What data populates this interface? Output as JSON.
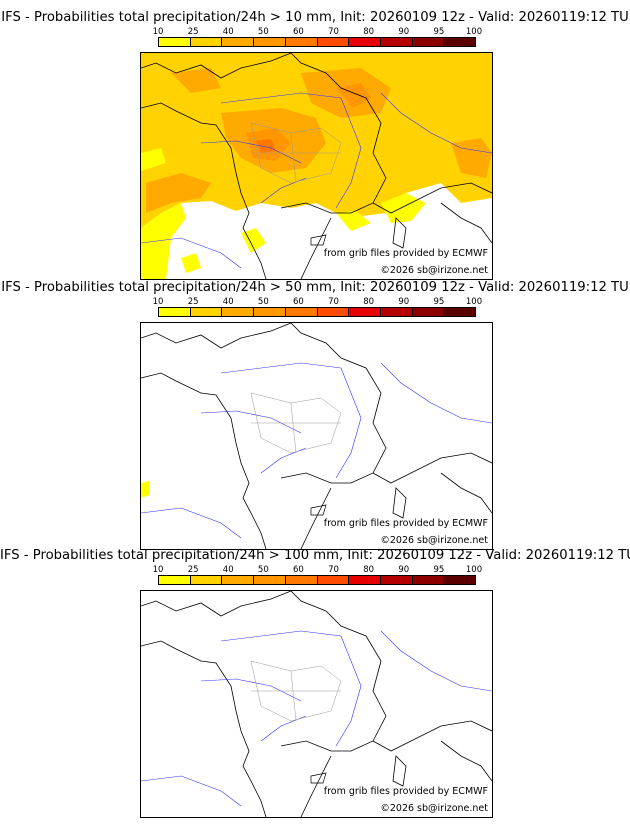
{
  "legend": {
    "ticks": [
      "10",
      "25",
      "40",
      "50",
      "60",
      "70",
      "80",
      "90",
      "95",
      "100"
    ],
    "colors": [
      "#ffff00",
      "#ffd200",
      "#ffaa00",
      "#ff9600",
      "#ff7800",
      "#ff4c00",
      "#e60000",
      "#b40000",
      "#8c0000",
      "#5a0000"
    ]
  },
  "credits": {
    "source": "from grib files provided by ECMWF",
    "copyright": "©2026 sb@irizone.net"
  },
  "panels": [
    {
      "title": "IFS - Probabilities total precipitation/24h > 10 mm, Init: 20260109 12z - Valid: 20260119:12 TU"
    },
    {
      "title": "IFS - Probabilities total precipitation/24h > 50 mm, Init: 20260109 12z - Valid: 20260119:12 TU"
    },
    {
      "title": "IFS - Probabilities total precipitation/24h > 100 mm, Init: 20260109 12z - Valid: 20260119:12 TU"
    }
  ]
}
